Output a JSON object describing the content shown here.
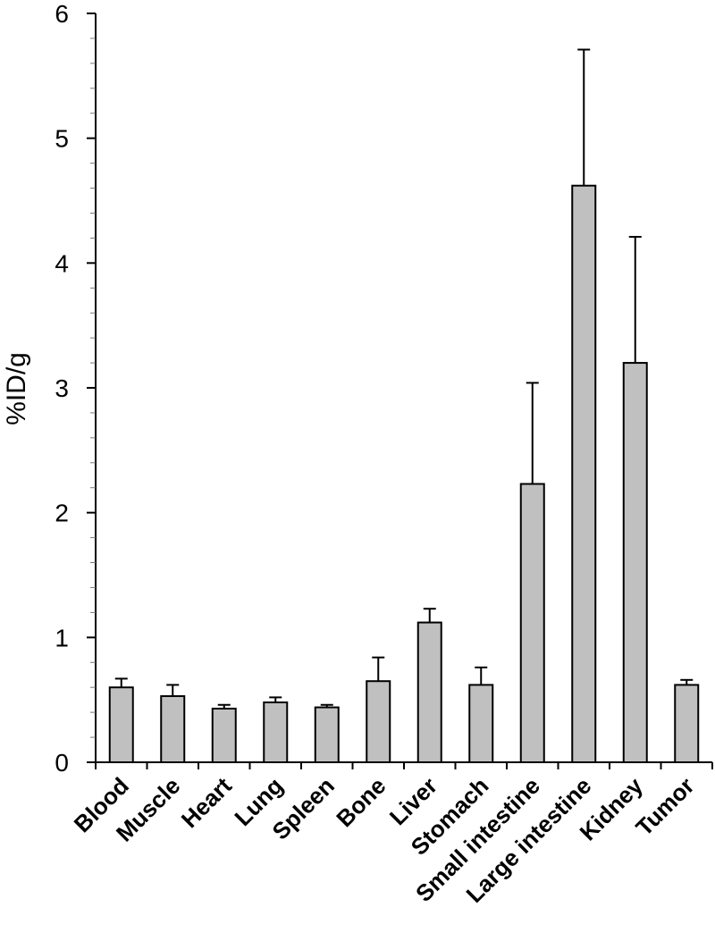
{
  "chart_data": {
    "type": "bar",
    "title": "",
    "xlabel": "",
    "ylabel": "%ID/g",
    "ylim": [
      0,
      6
    ],
    "yticks": [
      0,
      1,
      2,
      3,
      4,
      5,
      6
    ],
    "grid": false,
    "categories": [
      "Blood",
      "Muscle",
      "Heart",
      "Lung",
      "Spleen",
      "Bone",
      "Liver",
      "Stomach",
      "Small intestine",
      "Large intestine",
      "Kidney",
      "Tumor"
    ],
    "series": [
      {
        "values": [
          0.6,
          0.53,
          0.43,
          0.48,
          0.44,
          0.65,
          1.12,
          0.62,
          2.23,
          4.62,
          3.2,
          0.62
        ],
        "error_plus": [
          0.07,
          0.09,
          0.03,
          0.04,
          0.02,
          0.19,
          0.11,
          0.14,
          0.81,
          1.09,
          1.01,
          0.04
        ],
        "color": "#c0c0c0"
      }
    ]
  }
}
